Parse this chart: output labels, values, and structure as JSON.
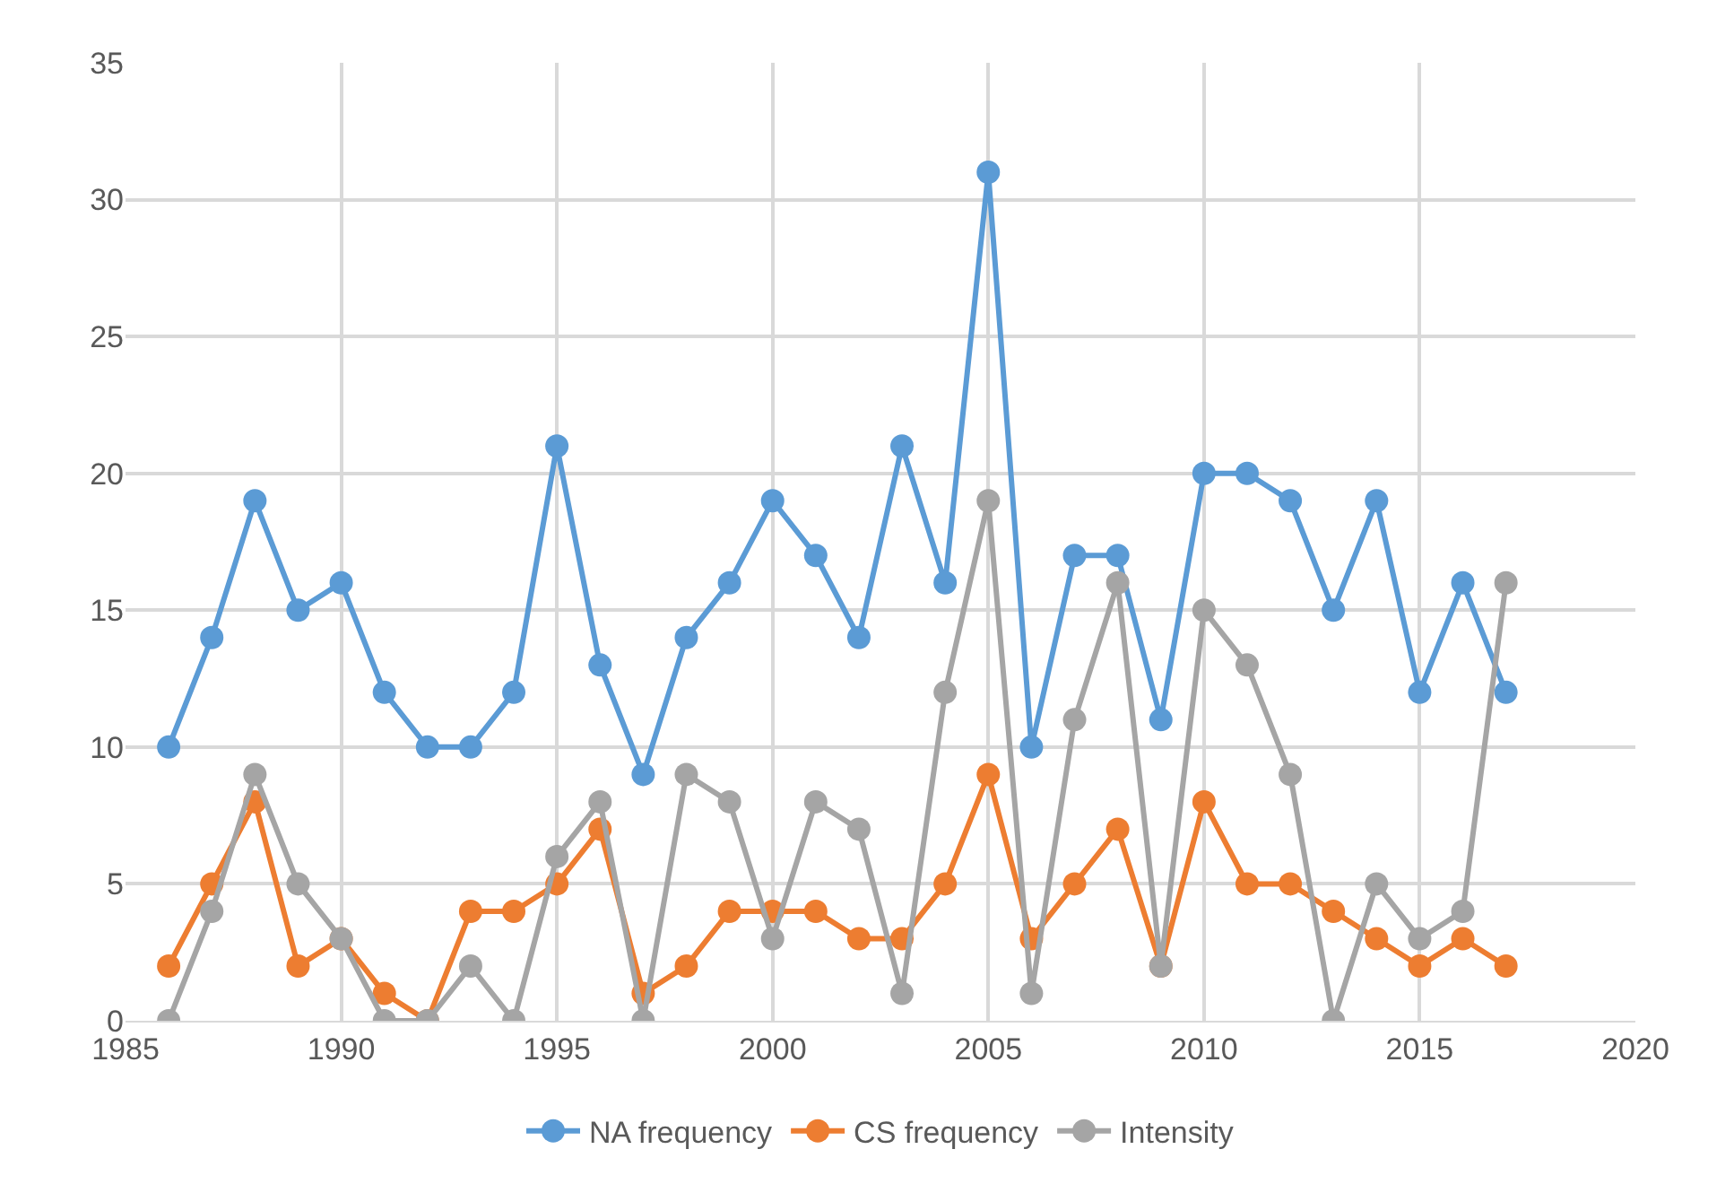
{
  "chart_data": {
    "type": "line",
    "x": [
      1986,
      1987,
      1988,
      1989,
      1990,
      1991,
      1992,
      1993,
      1994,
      1995,
      1996,
      1997,
      1998,
      1999,
      2000,
      2001,
      2002,
      2003,
      2004,
      2005,
      2006,
      2007,
      2008,
      2009,
      2010,
      2011,
      2012,
      2013,
      2014,
      2015,
      2016,
      2017
    ],
    "series": [
      {
        "name": "NA frequency",
        "color": "#5b9bd5",
        "values": [
          10,
          14,
          19,
          15,
          16,
          12,
          10,
          10,
          12,
          21,
          13,
          9,
          14,
          16,
          19,
          17,
          14,
          21,
          16,
          31,
          10,
          17,
          17,
          11,
          20,
          20,
          19,
          15,
          19,
          12,
          16,
          12
        ]
      },
      {
        "name": "CS frequency",
        "color": "#ed7d31",
        "values": [
          2,
          5,
          8,
          2,
          3,
          1,
          0,
          4,
          4,
          5,
          7,
          1,
          2,
          4,
          4,
          4,
          3,
          3,
          5,
          9,
          3,
          5,
          7,
          2,
          8,
          5,
          5,
          4,
          3,
          2,
          3,
          2
        ]
      },
      {
        "name": "Intensity",
        "color": "#a5a5a5",
        "values": [
          0,
          4,
          9,
          5,
          3,
          0,
          0,
          2,
          0,
          6,
          8,
          0,
          9,
          8,
          3,
          8,
          7,
          1,
          12,
          19,
          1,
          11,
          16,
          2,
          15,
          13,
          9,
          0,
          5,
          3,
          4,
          16
        ]
      }
    ],
    "xlim": [
      1985,
      2020
    ],
    "xticks": [
      1985,
      1990,
      1995,
      2000,
      2005,
      2010,
      2015,
      2020
    ],
    "ylim": [
      0,
      35
    ],
    "yticks": [
      0,
      5,
      10,
      15,
      20,
      25,
      30,
      35
    ],
    "grid": true,
    "legend": "bottom",
    "marker": "circle",
    "line_style": "solid"
  }
}
